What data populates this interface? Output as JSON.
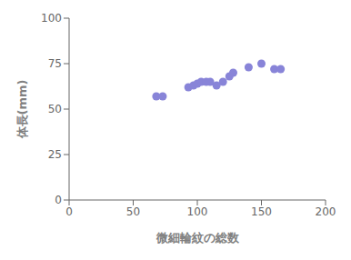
{
  "chart_data": {
    "type": "scatter",
    "x": [
      68,
      73,
      93,
      97,
      100,
      103,
      107,
      110,
      115,
      120,
      125,
      128,
      140,
      150,
      160,
      165
    ],
    "values": [
      57,
      57,
      62,
      63,
      64,
      65,
      65,
      65,
      63,
      65,
      68,
      70,
      73,
      75,
      72,
      72
    ],
    "xlabel": "微細輪紋の総数",
    "ylabel": "体長(mm)",
    "xlim": [
      0,
      200
    ],
    "ylim": [
      0,
      100
    ],
    "xticks": [
      0,
      50,
      100,
      150,
      200
    ],
    "yticks": [
      0,
      25,
      50,
      75,
      100
    ],
    "grid": false
  }
}
